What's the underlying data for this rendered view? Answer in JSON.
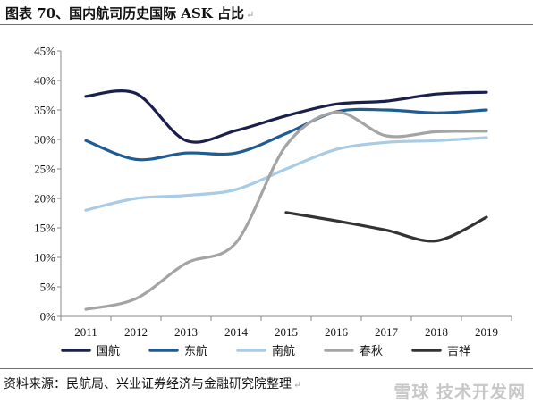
{
  "header": {
    "title": "图表 70、国内航司历史国际 ASK 占比",
    "mark": "↵"
  },
  "footer": {
    "source": "资料来源：民航局、兴业证券经济与金融研究院整理",
    "mark": "↵",
    "watermark": "雪球 技术开发网"
  },
  "chart_data": {
    "type": "line",
    "title": "图表 70、国内航司历史国际 ASK 占比",
    "xlabel": "",
    "ylabel": "",
    "categories": [
      "2011",
      "2012",
      "2013",
      "2014",
      "2015",
      "2016",
      "2017",
      "2018",
      "2019"
    ],
    "y_ticks": [
      "0%",
      "5%",
      "10%",
      "15%",
      "20%",
      "25%",
      "30%",
      "35%",
      "40%",
      "45%"
    ],
    "ylim": [
      0,
      45
    ],
    "grid": false,
    "legend_position": "bottom",
    "series": [
      {
        "name": "国航",
        "color": "#1b1f4b",
        "values": [
          37.3,
          37.8,
          29.8,
          31.5,
          34.0,
          36.0,
          36.5,
          37.7,
          38.0
        ]
      },
      {
        "name": "东航",
        "color": "#1f5c93",
        "values": [
          29.8,
          26.6,
          27.7,
          27.7,
          31.0,
          34.7,
          35.0,
          34.5,
          35.0
        ]
      },
      {
        "name": "南航",
        "color": "#a8cbe6",
        "values": [
          18.0,
          20.0,
          20.5,
          21.5,
          25.0,
          28.3,
          29.5,
          29.8,
          30.3
        ]
      },
      {
        "name": "春秋",
        "color": "#a4a4a4",
        "values": [
          1.2,
          3.0,
          9.0,
          12.5,
          29.0,
          34.6,
          30.6,
          31.3,
          31.4
        ]
      },
      {
        "name": "吉祥",
        "color": "#333333",
        "values": [
          null,
          null,
          null,
          null,
          17.6,
          16.2,
          14.6,
          12.8,
          16.8
        ]
      }
    ]
  }
}
